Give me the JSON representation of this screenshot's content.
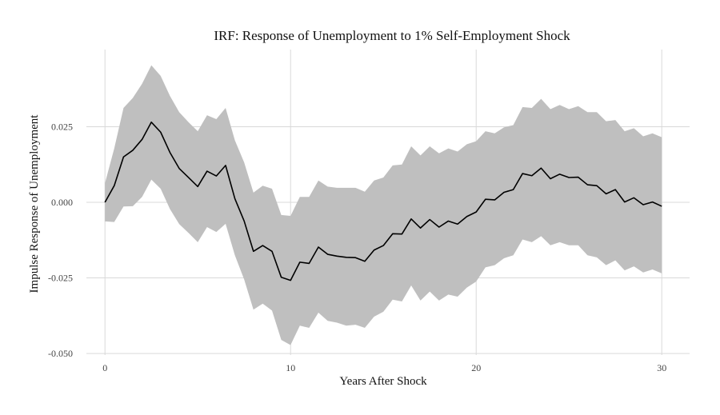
{
  "chart_data": {
    "type": "line",
    "title": "IRF: Response of Unemployment to 1% Self-Employment Shock",
    "xlabel": "Years After Shock",
    "ylabel": "Impulse Response of Unemployment",
    "xlim": [
      -1.0,
      31.5
    ],
    "ylim": [
      -0.0505,
      0.0505
    ],
    "x_ticks": [
      0,
      10,
      20,
      30
    ],
    "y_ticks": [
      0.025,
      0.0,
      -0.025,
      -0.05
    ],
    "x_tick_labels": [
      "0",
      "10",
      "20",
      "30"
    ],
    "y_tick_labels": [
      "0.025",
      "0.000",
      "-0.025",
      "-0.050"
    ],
    "grid": true,
    "legend": "none",
    "colors": {
      "line": "#000000",
      "band": "#bfbfbf",
      "grid": "#d9d9d9"
    },
    "x": [
      0,
      0.5,
      1,
      1.5,
      2,
      2.5,
      3,
      3.5,
      4,
      4.5,
      5,
      5.5,
      6,
      6.5,
      7,
      7.5,
      8,
      8.5,
      9,
      9.5,
      10,
      10.5,
      11,
      11.5,
      12,
      12.5,
      13,
      13.5,
      14,
      14.5,
      15,
      15.5,
      16,
      16.5,
      17,
      17.5,
      18,
      18.5,
      19,
      19.5,
      20,
      20.5,
      21,
      21.5,
      22,
      22.5,
      23,
      23.5,
      24,
      24.5,
      25,
      25.5,
      26,
      26.5,
      27,
      27.5,
      28,
      28.5,
      29,
      29.5,
      30
    ],
    "series": [
      {
        "values": [
          0.0,
          0.0055,
          0.015,
          0.0172,
          0.0208,
          0.0265,
          0.0232,
          0.0165,
          0.0112,
          0.0082,
          0.0052,
          0.0103,
          0.0087,
          0.0122,
          0.0012,
          -0.0062,
          -0.0162,
          -0.0143,
          -0.0162,
          -0.0248,
          -0.0258,
          -0.0198,
          -0.0202,
          -0.0148,
          -0.0172,
          -0.0178,
          -0.0182,
          -0.0183,
          -0.0195,
          -0.0158,
          -0.0143,
          -0.0104,
          -0.0105,
          -0.0055,
          -0.0085,
          -0.0057,
          -0.0082,
          -0.0062,
          -0.0072,
          -0.0047,
          -0.0032,
          0.001,
          0.0008,
          0.0033,
          0.0042,
          0.0095,
          0.0088,
          0.0113,
          0.0078,
          0.0093,
          0.0082,
          0.0083,
          0.0058,
          0.0055,
          0.0028,
          0.0042,
          0.0001,
          0.0015,
          -0.0008,
          0.0001,
          -0.0013
        ]
      },
      {
        "lower": [
          -0.0063,
          -0.0065,
          -0.0014,
          -0.0013,
          0.0018,
          0.0075,
          0.0045,
          -0.0022,
          -0.0072,
          -0.0101,
          -0.0132,
          -0.0082,
          -0.0098,
          -0.0071,
          -0.0175,
          -0.0255,
          -0.0355,
          -0.0335,
          -0.0358,
          -0.0455,
          -0.0472,
          -0.0408,
          -0.0415,
          -0.0365,
          -0.0392,
          -0.0398,
          -0.0408,
          -0.0405,
          -0.0415,
          -0.0378,
          -0.0362,
          -0.0322,
          -0.0328,
          -0.0275,
          -0.0325,
          -0.0295,
          -0.0325,
          -0.0305,
          -0.0312,
          -0.0282,
          -0.0262,
          -0.0215,
          -0.0208,
          -0.0185,
          -0.0175,
          -0.0123,
          -0.0132,
          -0.0112,
          -0.0142,
          -0.0132,
          -0.0142,
          -0.0142,
          -0.0175,
          -0.0182,
          -0.0208,
          -0.0192,
          -0.0225,
          -0.0212,
          -0.0232,
          -0.0222,
          -0.0235
        ],
        "upper": [
          0.0063,
          0.0178,
          0.0312,
          0.0345,
          0.0392,
          0.0453,
          0.0418,
          0.0352,
          0.0298,
          0.0265,
          0.0235,
          0.0288,
          0.0275,
          0.0312,
          0.0205,
          0.0132,
          0.0032,
          0.0055,
          0.0045,
          -0.0042,
          -0.0045,
          0.0018,
          0.0018,
          0.0072,
          0.0052,
          0.0048,
          0.0048,
          0.0048,
          0.0035,
          0.0072,
          0.0082,
          0.0122,
          0.0125,
          0.0185,
          0.0155,
          0.0185,
          0.0162,
          0.0178,
          0.0168,
          0.0192,
          0.0202,
          0.0235,
          0.0228,
          0.0248,
          0.0255,
          0.0315,
          0.0312,
          0.0342,
          0.0308,
          0.0322,
          0.0308,
          0.0318,
          0.0298,
          0.0298,
          0.0268,
          0.0272,
          0.0235,
          0.0245,
          0.0218,
          0.0228,
          0.0215
        ]
      }
    ]
  }
}
